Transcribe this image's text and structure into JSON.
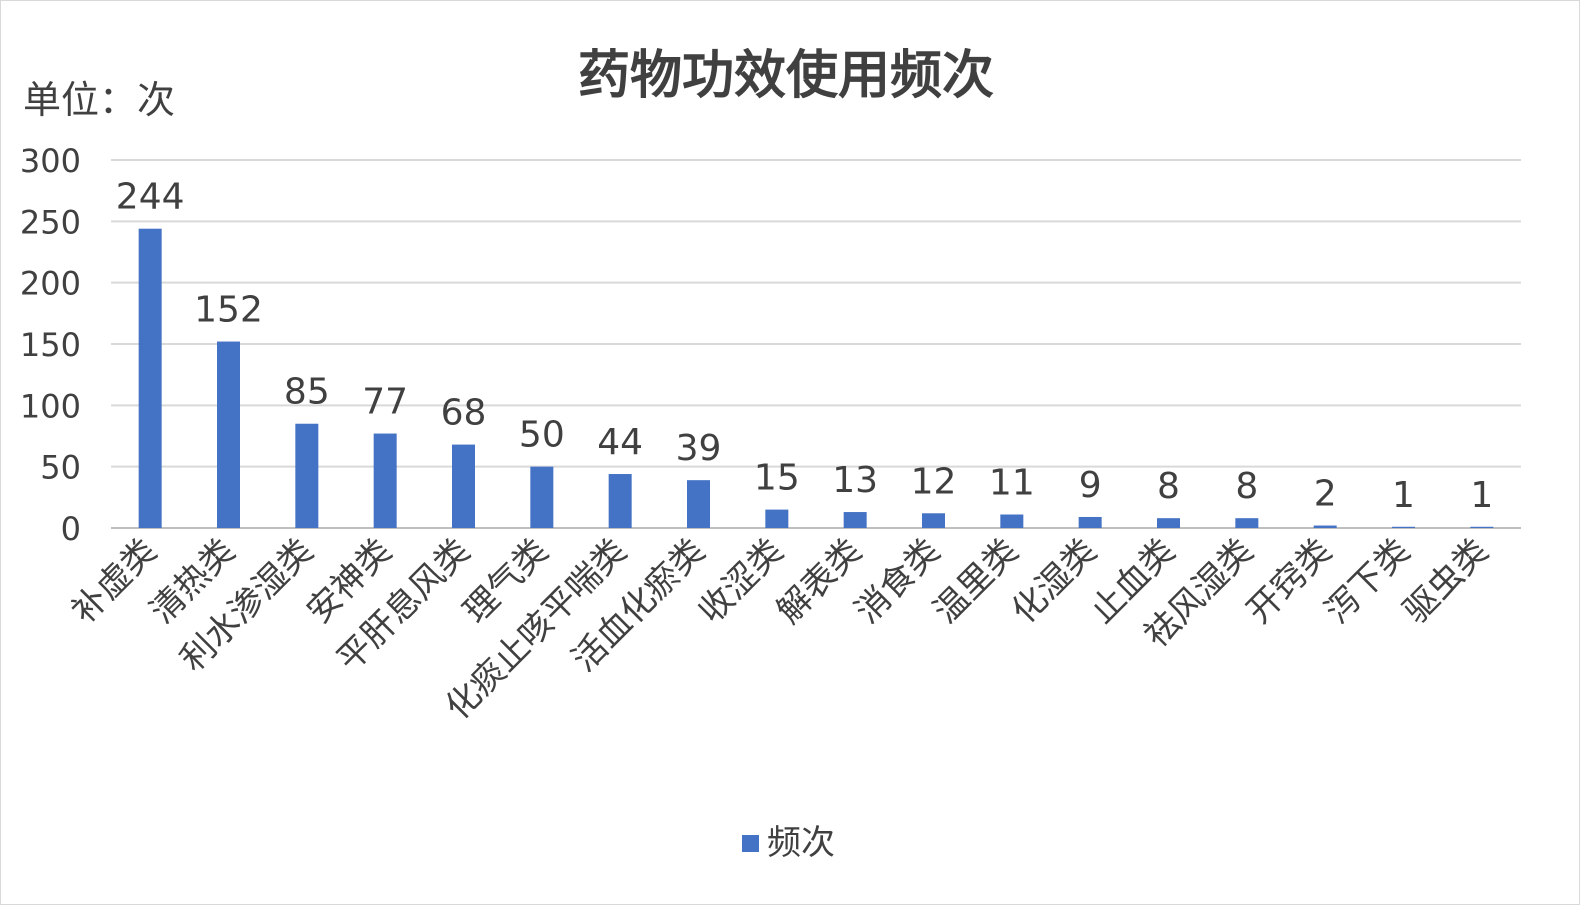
{
  "chart_data": {
    "type": "bar",
    "title": "药物功效使用频次",
    "unit_label": "单位：次",
    "categories": [
      "补虚类",
      "清热类",
      "利水渗湿类",
      "安神类",
      "平肝息风类",
      "理气类",
      "化痰止咳平喘类",
      "活血化瘀类",
      "收涩类",
      "解表类",
      "消食类",
      "温里类",
      "化湿类",
      "止血类",
      "祛风湿类",
      "开窍类",
      "泻下类",
      "驱虫类"
    ],
    "series": [
      {
        "name": "频次",
        "values": [
          244,
          152,
          85,
          77,
          68,
          50,
          44,
          39,
          15,
          13,
          12,
          11,
          9,
          8,
          8,
          2,
          1,
          1
        ]
      }
    ],
    "ylim": [
      0,
      300
    ],
    "yticks": [
      0,
      50,
      100,
      150,
      200,
      250,
      300
    ],
    "grid": true,
    "legend": "bottom",
    "data_labels": true,
    "bar_color": "#4472c4",
    "grid_color": "#d9d9d9",
    "text_color": "#404040",
    "title_color": "#404040"
  }
}
